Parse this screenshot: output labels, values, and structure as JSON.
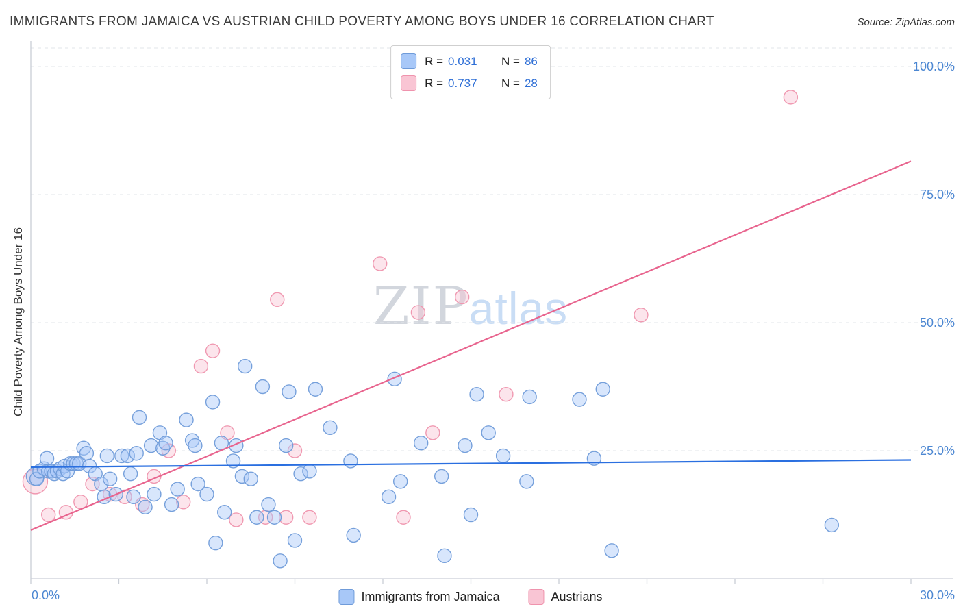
{
  "header": {
    "title": "IMMIGRANTS FROM JAMAICA VS AUSTRIAN CHILD POVERTY AMONG BOYS UNDER 16 CORRELATION CHART",
    "source": "Source: ZipAtlas.com"
  },
  "watermark": {
    "part1": "ZIP",
    "part2": "atlas"
  },
  "stats_legend": {
    "rows": [
      {
        "r_label": "R =",
        "r_value": "0.031",
        "n_label": "N =",
        "n_value": "86",
        "swatch": "#a8c8f8",
        "swatch_border": "#6f9bd9"
      },
      {
        "r_label": "R =",
        "r_value": "0.737",
        "n_label": "N =",
        "n_value": "28",
        "swatch": "#f9c5d4",
        "swatch_border": "#ef93ad"
      }
    ]
  },
  "bottom_legend": {
    "items": [
      {
        "label": "Immigrants from Jamaica",
        "swatch": "#a8c8f8",
        "swatch_border": "#6f9bd9"
      },
      {
        "label": "Austrians",
        "swatch": "#f9c5d4",
        "swatch_border": "#ef93ad"
      }
    ]
  },
  "y_axis": {
    "label": "Child Poverty Among Boys Under 16",
    "ticks": [
      {
        "value": 100,
        "label": "100.0%"
      },
      {
        "value": 75,
        "label": "75.0%"
      },
      {
        "value": 50,
        "label": "50.0%"
      },
      {
        "value": 25,
        "label": "25.0%"
      }
    ]
  },
  "x_axis": {
    "min_label": "0.0%",
    "max_label": "30.0%",
    "min": 0,
    "max": 30
  },
  "chart_data": {
    "type": "scatter",
    "title": "IMMIGRANTS FROM JAMAICA VS AUSTRIAN CHILD POVERTY AMONG BOYS UNDER 16 CORRELATION CHART",
    "xlabel": "",
    "ylabel": "Child Poverty Among Boys Under 16",
    "xlim": [
      0,
      30
    ],
    "ylim": [
      0,
      105
    ],
    "grid": {
      "y_values": [
        25,
        50,
        75,
        100
      ]
    },
    "legend_position": "bottom",
    "series": [
      {
        "name": "Austrians",
        "color": "#ef93ad",
        "fill": "#f9c5d4",
        "trend": {
          "x1": 0,
          "y1": 9.5,
          "x2": 30,
          "y2": 81.5
        },
        "trend_color": "#e8648e",
        "points": [
          [
            0.15,
            19,
            18
          ],
          [
            0.6,
            12.5
          ],
          [
            1.2,
            13
          ],
          [
            1.7,
            15
          ],
          [
            2.1,
            18.5
          ],
          [
            2.7,
            16.5
          ],
          [
            3.2,
            16
          ],
          [
            3.8,
            14.5
          ],
          [
            4.2,
            20
          ],
          [
            4.7,
            25
          ],
          [
            5.2,
            15
          ],
          [
            5.8,
            41.5
          ],
          [
            6.2,
            44.5
          ],
          [
            6.7,
            28.5
          ],
          [
            7.0,
            11.5
          ],
          [
            8.0,
            12
          ],
          [
            8.4,
            54.5
          ],
          [
            8.7,
            12
          ],
          [
            9.0,
            25
          ],
          [
            9.5,
            12
          ],
          [
            11.9,
            61.5
          ],
          [
            12.7,
            12
          ],
          [
            13.2,
            52
          ],
          [
            13.7,
            28.5
          ],
          [
            14.7,
            55
          ],
          [
            16.2,
            36
          ],
          [
            20.8,
            51.5
          ],
          [
            25.9,
            94
          ]
        ]
      },
      {
        "name": "Immigrants from Jamaica",
        "color": "#6f9bd9",
        "fill": "#a8c8f8",
        "trend": {
          "x1": 0,
          "y1": 21.8,
          "x2": 30,
          "y2": 23.2
        },
        "trend_color": "#2a6fe0",
        "points": [
          [
            0.15,
            20,
            13
          ],
          [
            0.2,
            19.5
          ],
          [
            0.3,
            21
          ],
          [
            0.45,
            21.5
          ],
          [
            0.55,
            23.5
          ],
          [
            0.6,
            21
          ],
          [
            0.7,
            21
          ],
          [
            0.8,
            20.5
          ],
          [
            0.9,
            21
          ],
          [
            1.0,
            21.5
          ],
          [
            1.1,
            20.5
          ],
          [
            1.15,
            22
          ],
          [
            1.25,
            21
          ],
          [
            1.35,
            22.5
          ],
          [
            1.45,
            22.5
          ],
          [
            1.55,
            22.5
          ],
          [
            1.65,
            22.5
          ],
          [
            1.8,
            25.5
          ],
          [
            1.9,
            24.5
          ],
          [
            2.0,
            22
          ],
          [
            2.2,
            20.5
          ],
          [
            2.4,
            18.5
          ],
          [
            2.5,
            16
          ],
          [
            2.6,
            24
          ],
          [
            2.7,
            19.5
          ],
          [
            2.9,
            16.5
          ],
          [
            3.1,
            24
          ],
          [
            3.3,
            24
          ],
          [
            3.4,
            20.5
          ],
          [
            3.5,
            16
          ],
          [
            3.6,
            24.5
          ],
          [
            3.7,
            31.5
          ],
          [
            3.9,
            14
          ],
          [
            4.1,
            26
          ],
          [
            4.2,
            16.5
          ],
          [
            4.4,
            28.5
          ],
          [
            4.5,
            25.5
          ],
          [
            4.6,
            26.5
          ],
          [
            4.8,
            14.5
          ],
          [
            5.0,
            17.5
          ],
          [
            5.3,
            31
          ],
          [
            5.5,
            27
          ],
          [
            5.6,
            26
          ],
          [
            5.7,
            18.5
          ],
          [
            6.0,
            16.5
          ],
          [
            6.2,
            34.5
          ],
          [
            6.3,
            7
          ],
          [
            6.5,
            26.5
          ],
          [
            6.6,
            13
          ],
          [
            6.9,
            23
          ],
          [
            7.0,
            26
          ],
          [
            7.2,
            20
          ],
          [
            7.3,
            41.5
          ],
          [
            7.5,
            19.5
          ],
          [
            7.7,
            12
          ],
          [
            7.9,
            37.5
          ],
          [
            8.1,
            14.5
          ],
          [
            8.3,
            12
          ],
          [
            8.5,
            3.5
          ],
          [
            8.7,
            26
          ],
          [
            8.8,
            36.5
          ],
          [
            9.0,
            7.5
          ],
          [
            9.2,
            20.5
          ],
          [
            9.5,
            21
          ],
          [
            9.7,
            37
          ],
          [
            10.2,
            29.5
          ],
          [
            10.9,
            23
          ],
          [
            11.0,
            8.5
          ],
          [
            12.2,
            16
          ],
          [
            12.4,
            39
          ],
          [
            12.6,
            19
          ],
          [
            13.3,
            26.5
          ],
          [
            14.0,
            20
          ],
          [
            14.1,
            4.5
          ],
          [
            14.8,
            26
          ],
          [
            15.0,
            12.5
          ],
          [
            15.2,
            36
          ],
          [
            15.6,
            28.5
          ],
          [
            16.1,
            24
          ],
          [
            16.9,
            19
          ],
          [
            17.0,
            35.5
          ],
          [
            18.7,
            35
          ],
          [
            19.2,
            23.5
          ],
          [
            19.5,
            37
          ],
          [
            19.8,
            5.5
          ],
          [
            27.3,
            10.5
          ]
        ]
      }
    ]
  }
}
